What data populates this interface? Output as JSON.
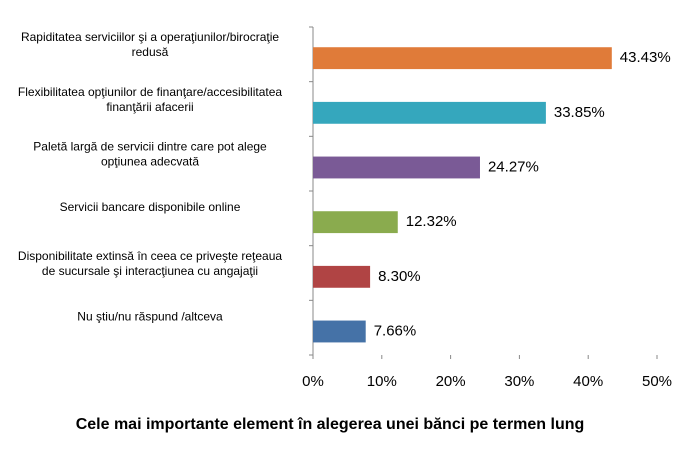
{
  "chart_data": {
    "type": "bar",
    "orientation": "horizontal",
    "title": "Cele mai importante element în alegerea unei bănci pe termen lung",
    "categories": [
      [
        "Rapiditatea serviciilor şi a operaţiunilor/birocraţie",
        "redusă"
      ],
      [
        "Flexibilitatea opţiunilor de finanţare/accesibilitatea",
        "finanţării afacerii"
      ],
      [
        "Paletă largă de servicii dintre care pot alege",
        "opţiunea adecvată"
      ],
      [
        "Servicii bancare disponibile online"
      ],
      [
        "Disponibilitate extinsă în ceea ce priveşte reţeaua",
        "de sucursale şi interacţiunea cu angajaţii"
      ],
      [
        "Nu ştiu/nu răspund /altceva"
      ]
    ],
    "values": [
      43.43,
      33.85,
      24.27,
      12.32,
      8.3,
      7.66
    ],
    "value_labels": [
      "43.43%",
      "33.85%",
      "24.27%",
      "12.32%",
      "8.30%",
      "7.66%"
    ],
    "colors": [
      "#e07b39",
      "#35a7bd",
      "#7a5a96",
      "#8aab4e",
      "#b04444",
      "#4572a7"
    ],
    "xlim": [
      0,
      50
    ],
    "xticks": [
      {
        "value": 0,
        "label": "0%"
      },
      {
        "value": 10,
        "label": "10%"
      },
      {
        "value": 20,
        "label": "20%"
      },
      {
        "value": 30,
        "label": "30%"
      },
      {
        "value": 40,
        "label": "40%"
      },
      {
        "value": 50,
        "label": "50%"
      }
    ],
    "grid": false
  }
}
